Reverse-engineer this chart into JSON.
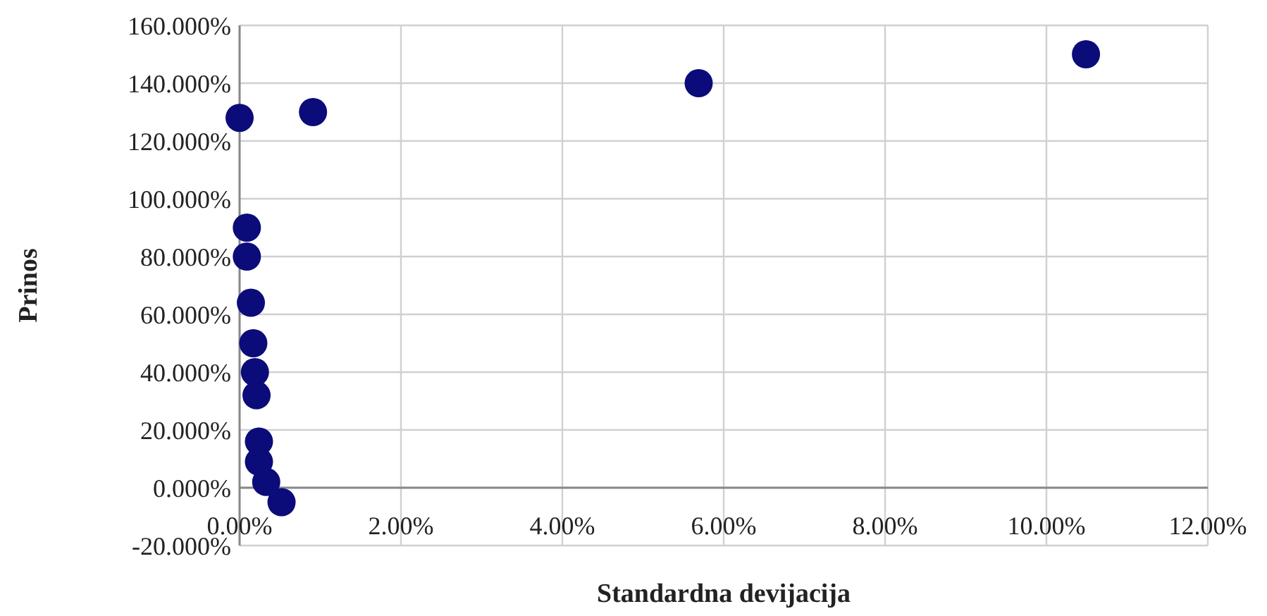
{
  "chart_data": {
    "type": "scatter",
    "xlabel": "Standardna devijacija",
    "ylabel": "Prinos",
    "x": [
      0.0,
      0.91,
      5.69,
      10.49,
      0.09,
      0.09,
      0.14,
      0.17,
      0.19,
      0.21,
      0.24,
      0.24,
      0.33,
      0.52
    ],
    "series": [
      {
        "color": "#0b0b7a",
        "values": [
          128,
          130,
          140,
          150,
          90,
          80,
          64,
          50,
          40,
          32,
          16,
          9,
          2,
          -5
        ]
      }
    ],
    "xlim": [
      0,
      12
    ],
    "xticks": [
      {
        "value": 0,
        "label": "0.00%"
      },
      {
        "value": 2,
        "label": "2.00%"
      },
      {
        "value": 4,
        "label": "4.00%"
      },
      {
        "value": 6,
        "label": "6.00%"
      },
      {
        "value": 8,
        "label": "8.00%"
      },
      {
        "value": 10,
        "label": "10.00%"
      },
      {
        "value": 12,
        "label": "12.00%"
      }
    ],
    "ylim": [
      -20,
      160
    ],
    "yticks": [
      {
        "value": -20,
        "label": "-20.000%"
      },
      {
        "value": 0,
        "label": "0.000%"
      },
      {
        "value": 20,
        "label": "20.000%"
      },
      {
        "value": 40,
        "label": "40.000%"
      },
      {
        "value": 60,
        "label": "60.000%"
      },
      {
        "value": 80,
        "label": "80.000%"
      },
      {
        "value": 100,
        "label": "100.000%"
      },
      {
        "value": 120,
        "label": "120.000%"
      },
      {
        "value": 140,
        "label": "140.000%"
      },
      {
        "value": 160,
        "label": "160.000%"
      }
    ],
    "grid": true,
    "marker": "circle"
  }
}
